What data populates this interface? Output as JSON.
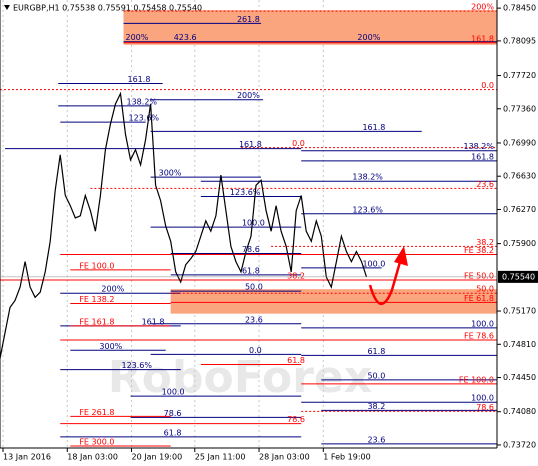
{
  "chart_data": {
    "type": "line",
    "title": "EURGBP,H1  0.75538 0.75591 0.75458 0.75540",
    "watermark": "RoboForex",
    "color": "#000000",
    "grid": true,
    "xlim": [
      0,
      99
    ],
    "ylim": [
      0.73687,
      0.78538
    ],
    "xticks": [
      {
        "value": 0.6,
        "label": "13 Jan 2016"
      },
      {
        "value": 13.4,
        "label": "18 Jan 03:00"
      },
      {
        "value": 26.2,
        "label": "20 Jan 19:00"
      },
      {
        "value": 38.8,
        "label": "25 Jan 11:00"
      },
      {
        "value": 51.6,
        "label": "28 Jan 03:00"
      },
      {
        "value": 64.4,
        "label": "1 Feb 19:00"
      }
    ],
    "yticks": [
      {
        "value": 0.7845,
        "label": "0.78450"
      },
      {
        "value": 0.78095,
        "label": "0.78095"
      },
      {
        "value": 0.7772,
        "label": "0.77720"
      },
      {
        "value": 0.7736,
        "label": "0.77360"
      },
      {
        "value": 0.7699,
        "label": "0.76990"
      },
      {
        "value": 0.7663,
        "label": "0.76630"
      },
      {
        "value": 0.7627,
        "label": "0.76270"
      },
      {
        "value": 0.759,
        "label": "0.75900"
      },
      {
        "value": 0.7517,
        "label": "0.75170"
      },
      {
        "value": 0.7481,
        "label": "0.74810"
      },
      {
        "value": 0.7445,
        "label": "0.74450"
      },
      {
        "value": 0.7408,
        "label": "0.74080"
      },
      {
        "value": 0.7372,
        "label": "0.73720"
      }
    ],
    "last_price": {
      "value": 0.7554,
      "label": "0.75540"
    },
    "values": [
      0.74657,
      0.74933,
      0.75208,
      0.75286,
      0.75429,
      0.75705,
      0.75429,
      0.75319,
      0.75374,
      0.75594,
      0.75925,
      0.76476,
      0.76862,
      0.76421,
      0.76311,
      0.76179,
      0.76201,
      0.76421,
      0.76256,
      0.76035,
      0.76421,
      0.76917,
      0.77193,
      0.77414,
      0.77524,
      0.77083,
      0.76807,
      0.76917,
      0.76752,
      0.77028,
      0.77414,
      0.76532,
      0.76366,
      0.7609,
      0.75925,
      0.75594,
      0.75484,
      0.75671,
      0.75738,
      0.75815,
      0.7598,
      0.76146,
      0.76035,
      0.76201,
      0.76642,
      0.76256,
      0.7587,
      0.75705,
      0.75594,
      0.75815,
      0.7598,
      0.76532,
      0.76587,
      0.76256,
      0.76035,
      0.76311,
      0.76035,
      0.7587,
      0.75594,
      0.76256,
      0.76421,
      0.76035,
      0.75925,
      0.76146,
      0.7598,
      0.75539,
      0.75429,
      0.75705,
      0.7598,
      0.75815,
      0.75705,
      0.75815,
      0.75705,
      0.7554
    ],
    "zones": [
      {
        "y1": 0.78428,
        "y2": 0.78053,
        "x1": 24.6,
        "x2": 99,
        "color": "#fba57f"
      },
      {
        "y1": 0.75407,
        "y2": 0.75142,
        "x1": 34,
        "x2": 99,
        "color": "#fba57f"
      }
    ],
    "levels": [
      {
        "label": "261.8",
        "value": 0.78285,
        "x1": 24.6,
        "x2": 52,
        "label_x": 47,
        "color": "#000080"
      },
      {
        "label": "200%",
        "value": 0.78086,
        "x1": 24.6,
        "x2": 99,
        "label_x": 24.8,
        "color": "#000080"
      },
      {
        "label": "423.6",
        "value": 0.78086,
        "x1": 34,
        "x2": 34,
        "label_x": 34.4,
        "color": "#000080"
      },
      {
        "label": "200%",
        "value": 0.78086,
        "x1": 71,
        "x2": 71,
        "label_x": 71,
        "color": "#000080"
      },
      {
        "label": "161.8",
        "value": 0.77634,
        "x1": 11.6,
        "x2": 32.4,
        "label_x": 25.2,
        "color": "#000080"
      },
      {
        "label": "138.2%",
        "value": 0.77391,
        "x1": 11.6,
        "x2": 30,
        "label_x": 25,
        "color": "#000080"
      },
      {
        "label": "123.6%",
        "value": 0.77215,
        "x1": 12,
        "x2": 29,
        "label_x": 25.4,
        "color": "#000080"
      },
      {
        "label": "200%",
        "value": 0.77458,
        "x1": 30,
        "x2": 52.4,
        "label_x": 47,
        "color": "#000080"
      },
      {
        "label": "161.8",
        "value": 0.77116,
        "x1": 30,
        "x2": 84,
        "label_x": 72,
        "color": "#000080"
      },
      {
        "label": "161.8",
        "value": 0.76928,
        "x1": 1,
        "x2": 60,
        "label_x": 47.4,
        "color": "#000080"
      },
      {
        "label": "138.2%",
        "value": 0.76906,
        "x1": 60,
        "x2": 99,
        "label_x": 99,
        "color": "#000080"
      },
      {
        "label": "161.8",
        "value": 0.76796,
        "x1": 60,
        "x2": 99,
        "label_x": 99,
        "color": "#000080"
      },
      {
        "label": "300%",
        "value": 0.7662,
        "x1": 30,
        "x2": 52,
        "label_x": 31.4,
        "color": "#000080"
      },
      {
        "label": "138.2%",
        "value": 0.76576,
        "x1": 40,
        "x2": 99,
        "label_x": 70,
        "color": "#000080"
      },
      {
        "label": "123.6%",
        "value": 0.7641,
        "x1": 40,
        "x2": 60,
        "label_x": 45.6,
        "color": "#000080"
      },
      {
        "label": "123.6%",
        "value": 0.76223,
        "x1": 60,
        "x2": 99,
        "label_x": 70,
        "color": "#000080"
      },
      {
        "label": "100.0",
        "value": 0.76079,
        "x1": 30,
        "x2": 60,
        "label_x": 48,
        "color": "#000080"
      },
      {
        "label": "78.6",
        "value": 0.75793,
        "x1": 34,
        "x2": 60,
        "label_x": 48,
        "color": "#000080"
      },
      {
        "label": "100.0",
        "value": 0.75638,
        "x1": 60,
        "x2": 76,
        "label_x": 72,
        "color": "#000080"
      },
      {
        "label": "61.8",
        "value": 0.75561,
        "x1": 34,
        "x2": 60,
        "label_x": 48,
        "color": "#000080"
      },
      {
        "label": "50.0",
        "value": 0.75385,
        "x1": 34,
        "x2": 60,
        "label_x": 48.6,
        "color": "#000080"
      },
      {
        "label": "200%",
        "value": 0.75363,
        "x1": 12,
        "x2": 36,
        "label_x": 20,
        "color": "#000080"
      },
      {
        "label": "23.6",
        "value": 0.75032,
        "x1": 30,
        "x2": 60,
        "label_x": 48.6,
        "color": "#000080"
      },
      {
        "label": "161.8",
        "value": 0.7501,
        "x1": 12,
        "x2": 36,
        "label_x": 28,
        "color": "#000080"
      },
      {
        "label": "100.0",
        "value": 0.74988,
        "x1": 60,
        "x2": 99,
        "label_x": 99,
        "color": "#000080"
      },
      {
        "label": "300%",
        "value": 0.74745,
        "x1": 14,
        "x2": 33,
        "label_x": 19.6,
        "color": "#000080"
      },
      {
        "label": "0.0",
        "value": 0.74701,
        "x1": 30,
        "x2": 60,
        "label_x": 49.4,
        "color": "#000080"
      },
      {
        "label": "61.8",
        "value": 0.7469,
        "x1": 60,
        "x2": 99,
        "label_x": 73,
        "color": "#000080"
      },
      {
        "label": "123.6%",
        "value": 0.74536,
        "x1": 12,
        "x2": 36,
        "label_x": 24,
        "color": "#000080"
      },
      {
        "label": "50.0",
        "value": 0.74425,
        "x1": 64,
        "x2": 99,
        "label_x": 73,
        "color": "#000080"
      },
      {
        "label": "100.0",
        "value": 0.74249,
        "x1": 26,
        "x2": 60,
        "label_x": 32,
        "color": "#000080"
      },
      {
        "label": "100.0",
        "value": 0.74183,
        "x1": 60,
        "x2": 99,
        "label_x": 99,
        "color": "#000080"
      },
      {
        "label": "38.2",
        "value": 0.74095,
        "x1": 64,
        "x2": 99,
        "label_x": 73,
        "color": "#000080"
      },
      {
        "label": "78.6",
        "value": 0.74018,
        "x1": 26,
        "x2": 60,
        "label_x": 32.4,
        "color": "#000080"
      },
      {
        "label": "61.8",
        "value": 0.73808,
        "x1": 12,
        "x2": 60,
        "label_x": 32.4,
        "color": "#000080"
      },
      {
        "label": "23.6",
        "value": 0.73731,
        "x1": 64,
        "x2": 99,
        "label_x": 73,
        "color": "#000080"
      },
      {
        "label": "200%",
        "value": 0.78417,
        "x1": 24.6,
        "x2": 99,
        "label_x": 99,
        "color": "#ff0000",
        "dash": true
      },
      {
        "label": "161.8",
        "value": 0.78075,
        "x1": 24.6,
        "x2": 99,
        "label_x": 99,
        "color": "#ff0000"
      },
      {
        "label": "0.0",
        "value": 0.77568,
        "x1": 0,
        "x2": 99,
        "label_x": 99,
        "color": "#ff0000",
        "dash": true
      },
      {
        "label": "0.0",
        "value": 0.76939,
        "x1": 48,
        "x2": 99,
        "label_x": 58,
        "color": "#ff0000",
        "dash": true
      },
      {
        "label": "23.6",
        "value": 0.76498,
        "x1": 18,
        "x2": 99,
        "label_x": 99,
        "color": "#ff0000",
        "dash": true
      },
      {
        "label": "38.2",
        "value": 0.7587,
        "x1": 54,
        "x2": 99,
        "label_x": 99,
        "color": "#ff0000",
        "dash": true
      },
      {
        "label": "FE 38.2",
        "value": 0.75782,
        "x1": 12,
        "x2": 99,
        "label_x": 99,
        "color": "#ff0000"
      },
      {
        "label": "FE 100.0",
        "value": 0.75616,
        "x1": 14,
        "x2": 34,
        "label_x": 15.6,
        "color": "#ff0000"
      },
      {
        "label": "FE 50.0",
        "value": 0.75506,
        "x1": 0,
        "x2": 99,
        "label_x": 99,
        "color": "#ff0000"
      },
      {
        "label": "38.2",
        "value": 0.75506,
        "x1": 40,
        "x2": 60,
        "label_x": 57,
        "color": "#ff0000"
      },
      {
        "label": "50.0",
        "value": 0.75363,
        "x1": 34,
        "x2": 99,
        "label_x": 99,
        "color": "#ff0000",
        "dash": true
      },
      {
        "label": "FE 61.8",
        "value": 0.75264,
        "x1": 34,
        "x2": 99,
        "label_x": 99,
        "color": "#ff0000"
      },
      {
        "label": "FE 138.2",
        "value": 0.75252,
        "x1": 14,
        "x2": 34,
        "label_x": 15.6,
        "color": "#ff0000"
      },
      {
        "label": "FE 161.8",
        "value": 0.7501,
        "x1": 14,
        "x2": 34,
        "label_x": 15.6,
        "color": "#ff0000"
      },
      {
        "label": "FE 78.6",
        "value": 0.74856,
        "x1": 12,
        "x2": 99,
        "label_x": 99,
        "color": "#ff0000"
      },
      {
        "label": "61.8",
        "value": 0.74591,
        "x1": 40,
        "x2": 60,
        "label_x": 57,
        "color": "#ff0000"
      },
      {
        "label": "FE 100.0",
        "value": 0.74381,
        "x1": 60,
        "x2": 99,
        "label_x": 99,
        "color": "#ff0000"
      },
      {
        "label": "78.6",
        "value": 0.74084,
        "x1": 60,
        "x2": 99,
        "label_x": 99,
        "color": "#ff0000",
        "dash": true
      },
      {
        "label": "FE 261.8",
        "value": 0.74029,
        "x1": 14,
        "x2": 34,
        "label_x": 15.6,
        "color": "#ff0000"
      },
      {
        "label": "78.6",
        "value": 0.73951,
        "x1": 12,
        "x2": 60,
        "label_x": 57,
        "color": "#ff0000"
      },
      {
        "label": "FE 300.0",
        "value": 0.73709,
        "x1": 14,
        "x2": 34,
        "label_x": 15.6,
        "color": "#ff0000"
      }
    ]
  }
}
